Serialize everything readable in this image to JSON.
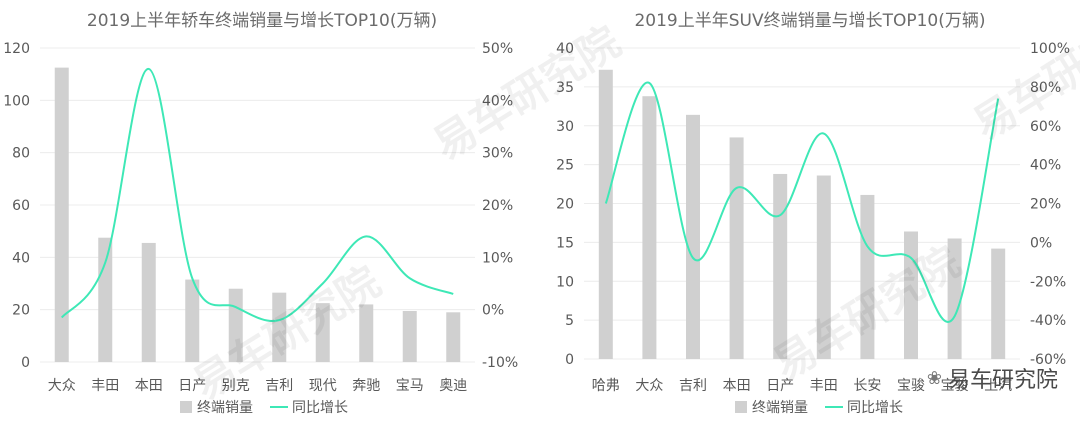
{
  "watermark_text": "易车研究院",
  "brand_text": "易车研究院",
  "colors": {
    "bar": "#d0d0d0",
    "line": "#3ee8b6",
    "axis_text": "#595959",
    "title": "#6b6b6b"
  },
  "chart_data": [
    {
      "type": "bar",
      "title": "2019上半年轿车终端销量与增长TOP10(万辆)",
      "categories": [
        "大众",
        "丰田",
        "本田",
        "日产",
        "别克",
        "吉利",
        "现代",
        "奔驰",
        "宝马",
        "奥迪"
      ],
      "series": [
        {
          "name": "终端销量",
          "type": "bar",
          "axis": "left",
          "values": [
            112.5,
            47.5,
            45.5,
            31.5,
            28,
            26.5,
            22.5,
            22,
            19.5,
            19
          ]
        },
        {
          "name": "同比增长",
          "type": "line",
          "axis": "right",
          "values": [
            -1.5,
            9,
            46,
            6,
            0.5,
            -2,
            5,
            14,
            6,
            3
          ]
        }
      ],
      "ylim": [
        0,
        120
      ],
      "yticks": [
        0,
        20,
        40,
        60,
        80,
        100,
        120
      ],
      "y2lim": [
        -10,
        50
      ],
      "y2ticks": [
        "-10%",
        "0%",
        "10%",
        "20%",
        "30%",
        "40%",
        "50%"
      ],
      "legend": [
        "终端销量",
        "同比增长"
      ],
      "legend_position": "bottom",
      "grid": true
    },
    {
      "type": "bar",
      "title": "2019上半年SUV终端销量与增长TOP10(万辆)",
      "categories": [
        "哈弗",
        "大众",
        "吉利",
        "本田",
        "日产",
        "丰田",
        "长安",
        "宝骏",
        "宝骏",
        "上汽"
      ],
      "series": [
        {
          "name": "终端销量",
          "type": "bar",
          "axis": "left",
          "values": [
            37.2,
            33.8,
            31.4,
            28.5,
            23.8,
            23.6,
            21.1,
            16.4,
            15.5,
            14.2
          ]
        },
        {
          "name": "同比增长",
          "type": "line",
          "axis": "right",
          "values": [
            20,
            82,
            -8,
            28,
            14,
            56,
            -2,
            -8,
            -38,
            74
          ]
        }
      ],
      "ylim": [
        0,
        40
      ],
      "yticks": [
        0,
        5,
        10,
        15,
        20,
        25,
        30,
        35,
        40
      ],
      "y2lim": [
        -60,
        100
      ],
      "y2ticks": [
        "-60%",
        "-40%",
        "-20%",
        "0%",
        "20%",
        "40%",
        "60%",
        "80%",
        "100%"
      ],
      "legend": [
        "终端销量",
        "同比增长"
      ],
      "legend_position": "bottom",
      "grid": true
    }
  ]
}
